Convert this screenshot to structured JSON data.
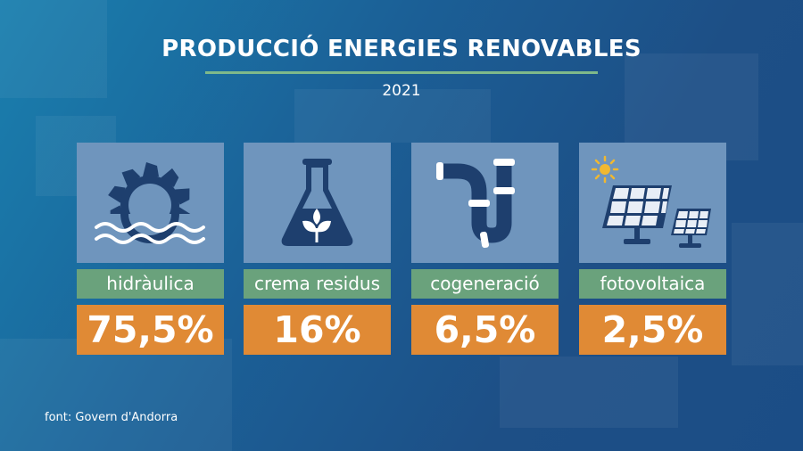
{
  "chart_data": {
    "type": "table",
    "title": "PRODUCCIÓ ENERGIES RENOVABLES",
    "subtitle": "2021",
    "categories": [
      {
        "label": "hidràulica",
        "value_text": "75,5%",
        "value": 75.5,
        "icon": "water-wheel-icon"
      },
      {
        "label": "crema residus",
        "value_text": "16%",
        "value": 16,
        "icon": "flask-leaf-icon"
      },
      {
        "label": "cogeneració",
        "value_text": "6,5%",
        "value": 6.5,
        "icon": "pipe-icon"
      },
      {
        "label": "fotovoltaica",
        "value_text": "2,5%",
        "value": 2.5,
        "icon": "solar-panel-icon"
      }
    ],
    "source": "font: Govern d'Andorra"
  },
  "colors": {
    "icon_box": "#6f95bd",
    "label_bg": "#6aa27c",
    "value_bg": "#e08a35",
    "icon_dark": "#1e3f6e",
    "sun": "#f0b830"
  }
}
